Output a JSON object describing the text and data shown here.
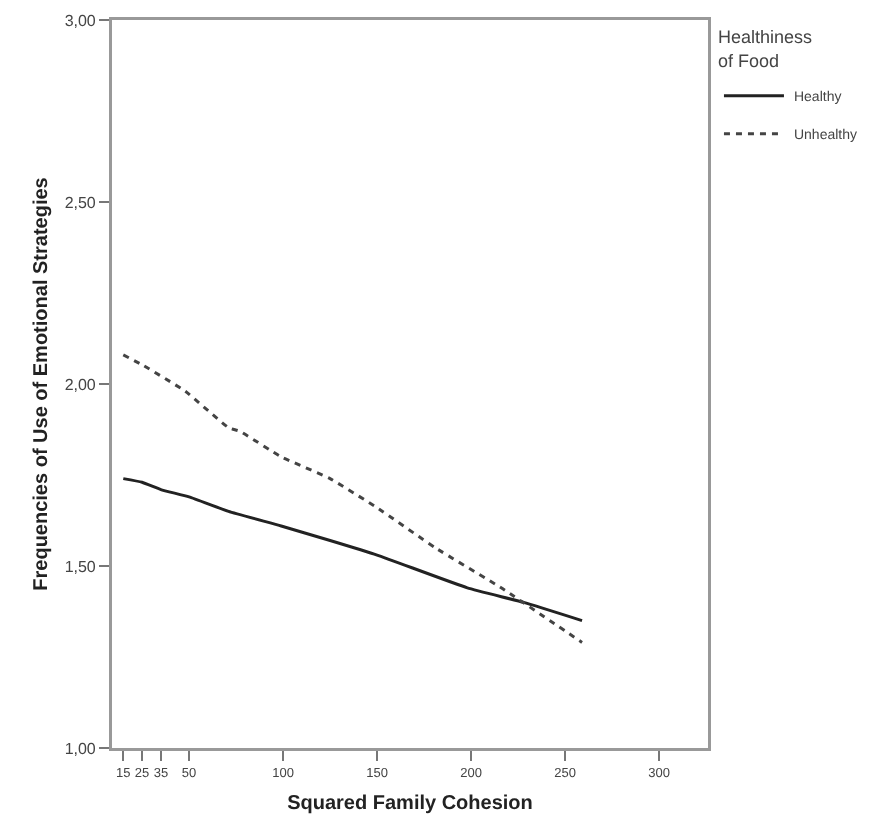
{
  "chart_data": {
    "type": "line",
    "xlabel": "Squared Family Cohesion",
    "ylabel": "Frequencies of Use of Emotional Strategies",
    "legend_title": "Healthiness of Food",
    "legend": "top right",
    "grid": false,
    "marker": "none",
    "xlim": [
      9,
      326
    ],
    "xticks": [
      15,
      25,
      35,
      50,
      100,
      150,
      200,
      250,
      300
    ],
    "ylim": [
      1,
      3
    ],
    "yticks": [
      {
        "value": 1,
        "label": "1,00"
      },
      {
        "value": 1.5,
        "label": "1,50"
      },
      {
        "value": 2,
        "label": "2,00"
      },
      {
        "value": 2.5,
        "label": "2,50"
      },
      {
        "value": 3,
        "label": "3,00"
      }
    ],
    "series": [
      {
        "name": "Healthy",
        "color": "#222222",
        "line_style": "solid",
        "x": [
          15,
          25,
          35,
          50,
          71,
          99,
          125,
          150,
          198,
          228,
          259
        ],
        "values": [
          1.74,
          1.73,
          1.71,
          1.69,
          1.65,
          1.61,
          1.57,
          1.53,
          1.44,
          1.4,
          1.35
        ]
      },
      {
        "name": "Unhealthy",
        "color": "#444444",
        "line_style": "dotted",
        "x": [
          15,
          26,
          48,
          71,
          77,
          99,
          125,
          150,
          181,
          216,
          259
        ],
        "values": [
          2.08,
          2.05,
          1.98,
          1.88,
          1.87,
          1.8,
          1.74,
          1.66,
          1.55,
          1.44,
          1.29
        ]
      }
    ]
  }
}
